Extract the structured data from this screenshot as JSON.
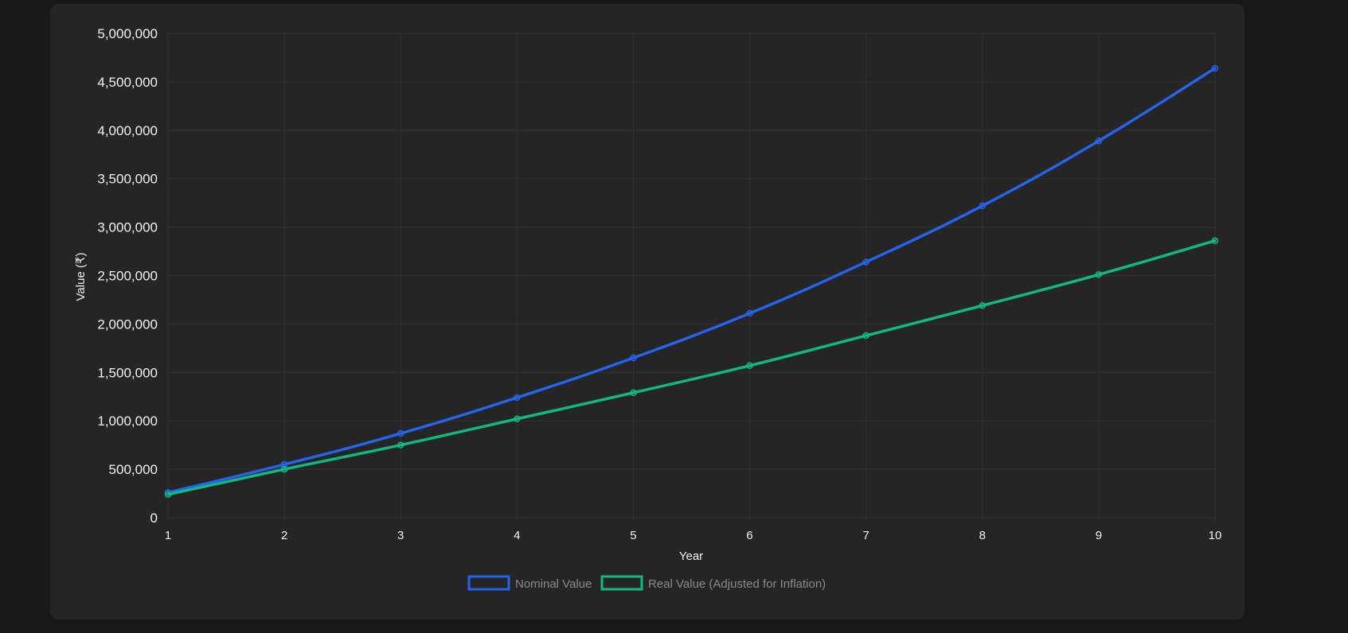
{
  "chart_data": {
    "type": "line",
    "x": [
      1,
      2,
      3,
      4,
      5,
      6,
      7,
      8,
      9,
      10
    ],
    "xlabel": "Year",
    "ylabel": "Value (₹)",
    "ylim": [
      0,
      5000000
    ],
    "yticks": [
      0,
      500000,
      1000000,
      1500000,
      2000000,
      2500000,
      3000000,
      3500000,
      4000000,
      4500000,
      5000000
    ],
    "ytick_labels": [
      "0",
      "500,000",
      "1,000,000",
      "1,500,000",
      "2,000,000",
      "2,500,000",
      "3,000,000",
      "3,500,000",
      "4,000,000",
      "4,500,000",
      "5,000,000"
    ],
    "grid": true,
    "legend_position": "bottom-center",
    "series": [
      {
        "name": "Nominal Value",
        "color": "#2563eb",
        "values": [
          260000,
          550000,
          870000,
          1240000,
          1650000,
          2110000,
          2640000,
          3220000,
          3890000,
          4640000
        ]
      },
      {
        "name": "Real Value (Adjusted for Inflation)",
        "color": "#10b981",
        "values": [
          240000,
          500000,
          750000,
          1020000,
          1290000,
          1570000,
          1880000,
          2190000,
          2510000,
          2860000
        ]
      }
    ]
  }
}
